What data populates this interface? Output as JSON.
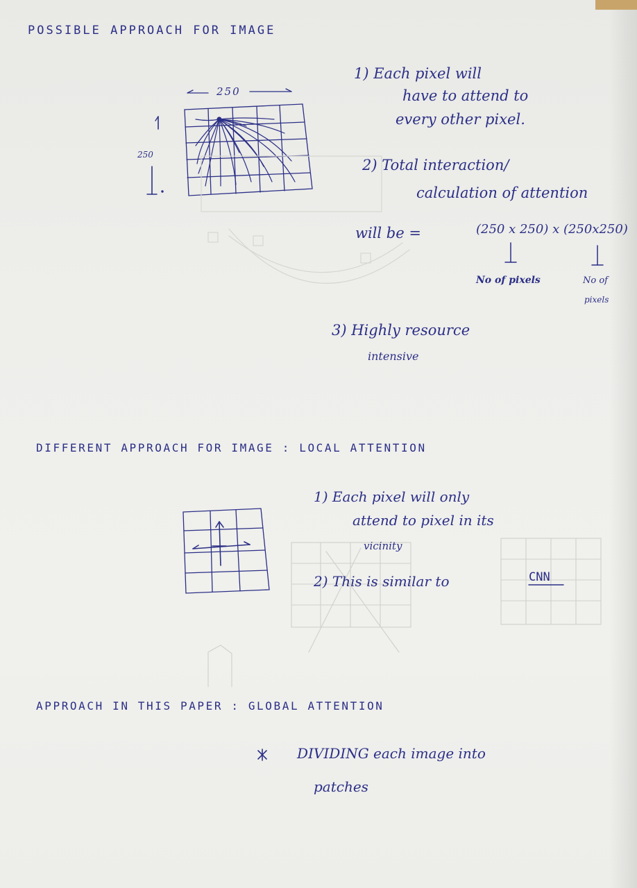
{
  "heading_possible": "POSSIBLE APPROACH FOR IMAGE",
  "label_250_width": "250",
  "label_250_height": "250",
  "point1_line1": "1) Each pixel will",
  "point1_line2": "have to attend to",
  "point1_line3": "every other pixel.",
  "point2_line1": "2) Total interaction/",
  "point2_line2": "calculation of attention",
  "point2_line3": "will be =",
  "formula": "(250 x 250) x (250x250)",
  "formula_note_left": "No of pixels",
  "formula_note_right_1": "No of",
  "formula_note_right_2": "pixels",
  "point3_line1": "3) Highly resource",
  "point3_line2": "intensive",
  "heading_different": "DIFFERENT APPROACH FOR IMAGE : LOCAL ATTENTION",
  "local_point1_line1": "1) Each pixel will only",
  "local_point1_line2": "attend to pixel in its",
  "local_point1_line3": "vicinity",
  "local_point2": "2) This is similar to",
  "local_point2_cnn": "CNN",
  "heading_paper": "APPROACH IN THIS PAPER : GLOBAL ATTENTION",
  "paper_point_line1": "DIVIDING each image into",
  "paper_point_line2": "patches",
  "ink_color": "#2b2f86"
}
